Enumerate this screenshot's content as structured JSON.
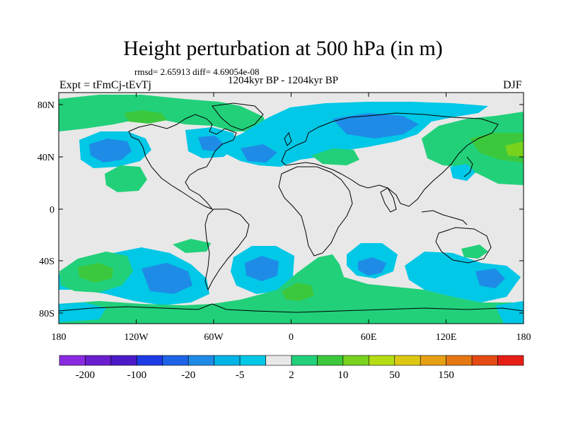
{
  "title": "Height perturbation at 500 hPa (in m)",
  "stats": "rmsd= 2.65913 diff= 4.69054e-08",
  "period": "1204kyr BP - 1204kyr BP",
  "experiment": "Expt = tFmCj-tEvTj",
  "season": "DJF",
  "lat_ticks": [
    "80N",
    "40N",
    "0",
    "40S",
    "80S"
  ],
  "lon_ticks": [
    "180",
    "120W",
    "60W",
    "0",
    "60E",
    "120E",
    "180"
  ],
  "colorbar": {
    "colors": [
      "#8a2be2",
      "#6a1ed0",
      "#4a1ac8",
      "#1e3ce6",
      "#1e64e6",
      "#1e8ce6",
      "#00b4e6",
      "#00c8e6",
      "#e8e8e8",
      "#22d07a",
      "#3cc83c",
      "#78d21e",
      "#b4dc14",
      "#dcc814",
      "#e6a014",
      "#e67814",
      "#e64a14",
      "#e61e14"
    ],
    "labels": [
      "-200",
      "-100",
      "-20",
      "-5",
      "2",
      "10",
      "50",
      "150"
    ]
  },
  "palette": {
    "neutral": "#e8e8e8",
    "light_blue": "#00c8e6",
    "blue": "#1e8ce6",
    "green": "#22d07a",
    "mid_green": "#3cc83c",
    "yellow_green": "#78d21e"
  }
}
